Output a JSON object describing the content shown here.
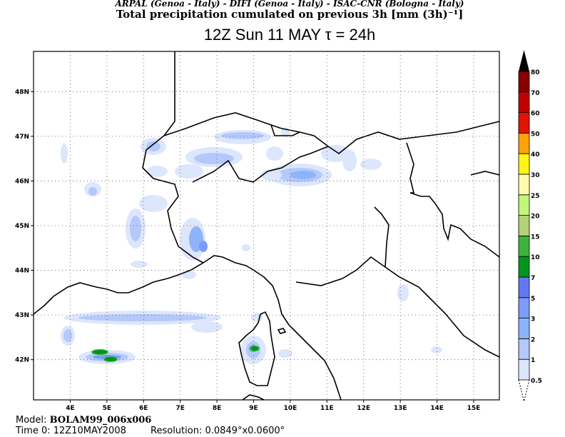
{
  "header": {
    "credits": "ARPAL (Genoa - Italy)  -  DIFI (Genoa - Italy)  -  ISAC-CNR (Bologna - Italy)",
    "title": "Total precipitation cumulated on previous 3h [mm (3h)⁻¹]",
    "subtitle": "12Z Sun 11 MAY   τ = 24h"
  },
  "map": {
    "lon_labels": [
      "4E",
      "5E",
      "6E",
      "7E",
      "8E",
      "9E",
      "10E",
      "11E",
      "12E",
      "13E",
      "14E",
      "15E"
    ],
    "lat_labels": [
      "48N",
      "47N",
      "46N",
      "45N",
      "44N",
      "43N",
      "42N"
    ],
    "lon_range": [
      3.0,
      15.7
    ],
    "lat_range": [
      41.1,
      48.9
    ],
    "grid": "dotted"
  },
  "legend": {
    "levels": [
      "0.5",
      "1",
      "2",
      "3",
      "5",
      "7",
      "10",
      "15",
      "20",
      "25",
      "30",
      "40",
      "50",
      "60",
      "70",
      "80"
    ],
    "colors": [
      "#dce6fc",
      "#b4c8fa",
      "#8cb4fa",
      "#7c9cfa",
      "#6478f5",
      "#00961e",
      "#3cb43c",
      "#b4d278",
      "#bef878",
      "#fffaaa",
      "#fff514",
      "#ffa10a",
      "#e11400",
      "#c00000",
      "#870000",
      "#000000"
    ]
  },
  "footer": {
    "model_label": "Model:",
    "model": "BOLAM99_006x006",
    "time_label": "Time 0:",
    "time": "12Z10MAY2008",
    "resolution_label": "Resolution:",
    "resolution": "0.0849°x0.0600°"
  }
}
